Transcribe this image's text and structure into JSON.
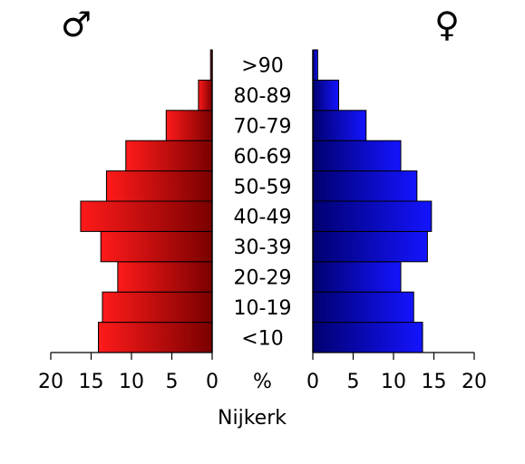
{
  "chart_data": {
    "type": "bar",
    "orientation": "horizontal-back-to-back",
    "categories": [
      "<10",
      "10-19",
      "20-29",
      "30-39",
      "40-49",
      "50-59",
      "60-69",
      "70-79",
      "80-89",
      ">90"
    ],
    "series": [
      {
        "symbol": "♂",
        "side": "left",
        "color": "#e00000",
        "values": [
          14.1,
          13.6,
          11.7,
          13.8,
          16.3,
          13.1,
          10.7,
          5.7,
          1.7,
          0.2
        ]
      },
      {
        "symbol": "♀",
        "side": "right",
        "color": "#0000e0",
        "values": [
          13.6,
          12.5,
          10.9,
          14.2,
          14.7,
          12.9,
          10.9,
          6.6,
          3.2,
          0.6
        ]
      }
    ],
    "xlim": [
      0,
      20
    ],
    "x_ticks": [
      "0",
      "5",
      "10",
      "15",
      "20"
    ],
    "x_unit": "%",
    "caption": "Nijkerk",
    "grid": false
  }
}
